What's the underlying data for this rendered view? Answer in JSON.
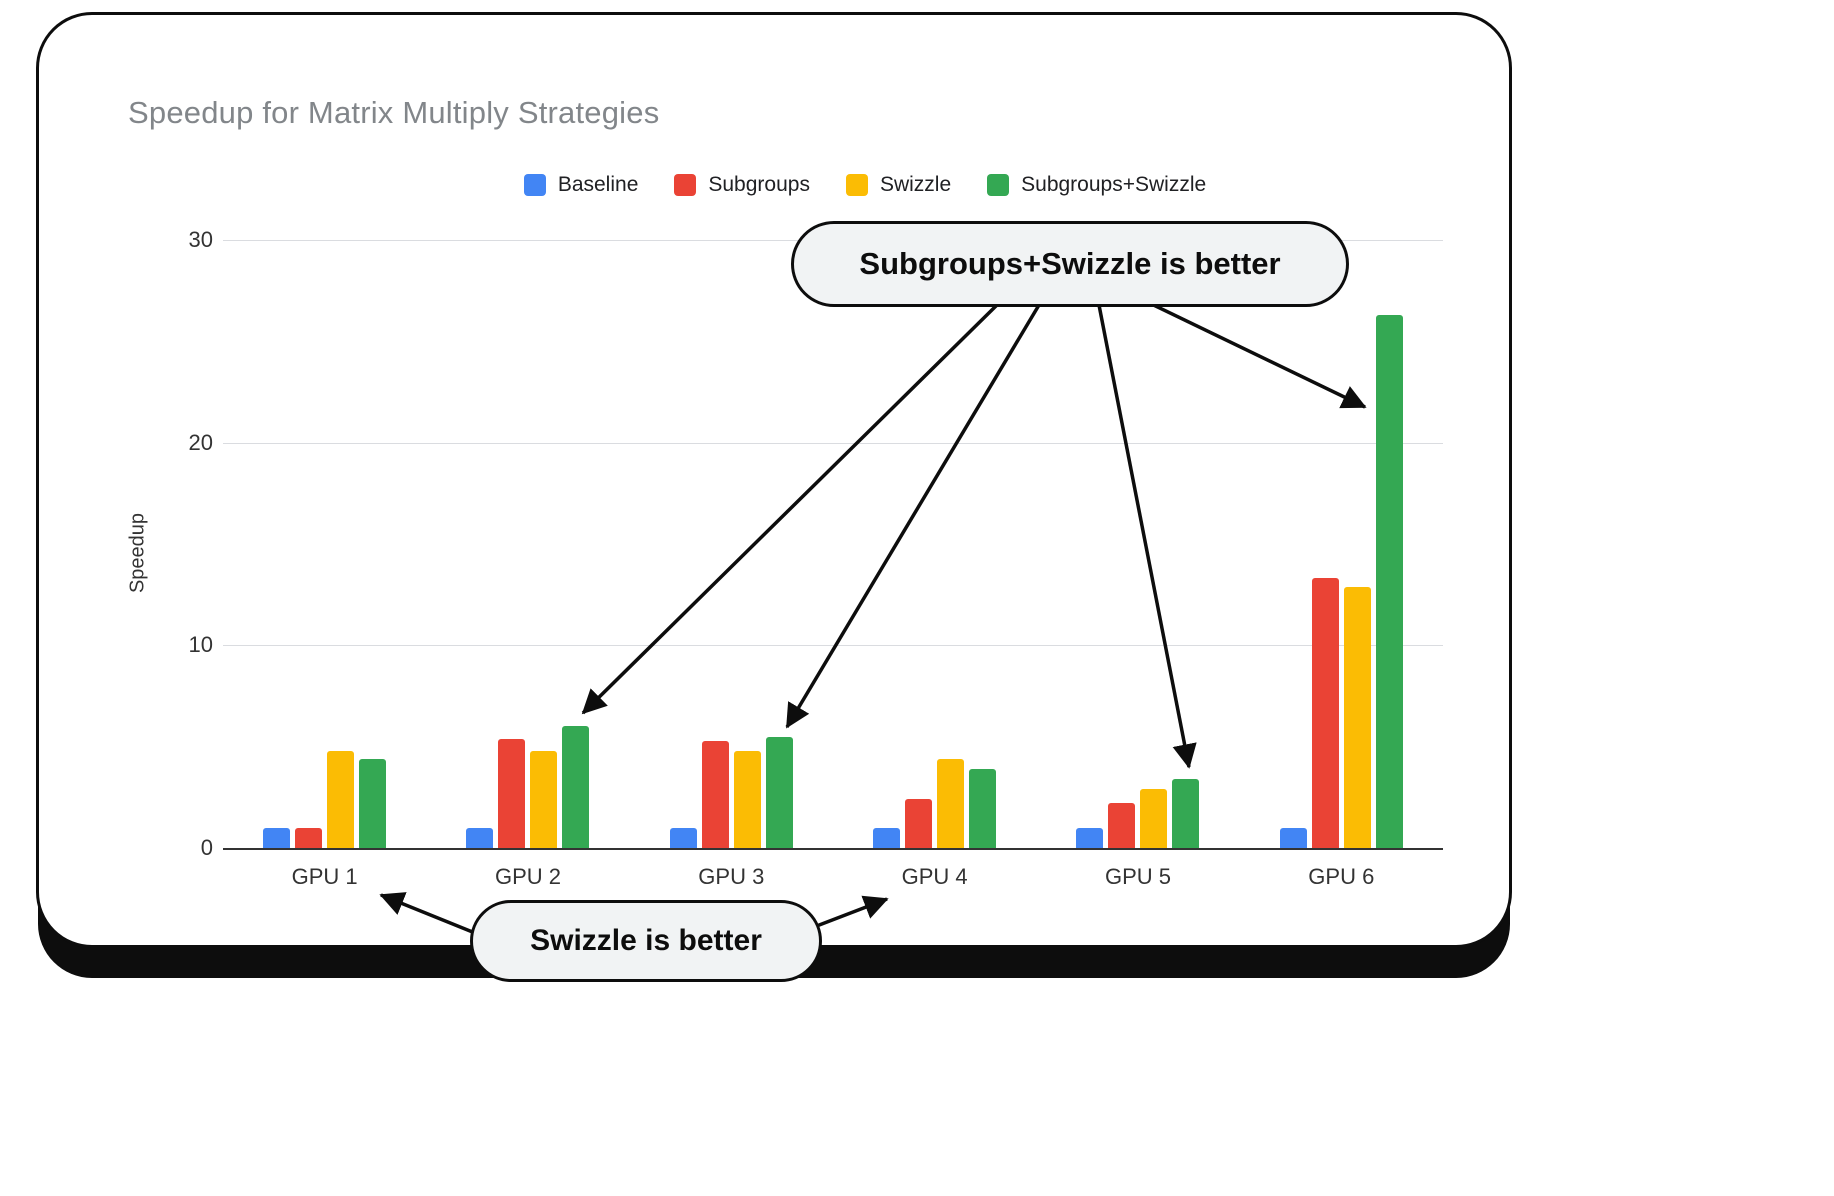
{
  "chart_data": {
    "type": "bar",
    "title": "Speedup for Matrix Multiply Strategies",
    "categories": [
      "GPU 1",
      "GPU 2",
      "GPU 3",
      "GPU 4",
      "GPU 5",
      "GPU 6"
    ],
    "series": [
      {
        "name": "Baseline",
        "color": "#4285F4",
        "values": [
          1.0,
          1.0,
          1.0,
          1.0,
          1.0,
          1.0
        ]
      },
      {
        "name": "Subgroups",
        "color": "#EA4335",
        "values": [
          1.0,
          5.4,
          5.3,
          2.4,
          2.2,
          13.3
        ]
      },
      {
        "name": "Swizzle",
        "color": "#FBBC04",
        "values": [
          4.8,
          4.8,
          4.8,
          4.4,
          2.9,
          12.9
        ]
      },
      {
        "name": "Subgroups+Swizzle",
        "color": "#34A853",
        "values": [
          4.4,
          6.0,
          5.5,
          3.9,
          3.4,
          26.3
        ]
      }
    ],
    "xlabel": "",
    "ylabel": "Speedup",
    "ylim": [
      0,
      30
    ],
    "yticks": [
      0,
      10,
      20,
      30
    ],
    "grid": true,
    "legend_position": "top"
  },
  "annotations": {
    "top_callout": "Subgroups+Swizzle is better",
    "bottom_callout": "Swizzle is better"
  }
}
